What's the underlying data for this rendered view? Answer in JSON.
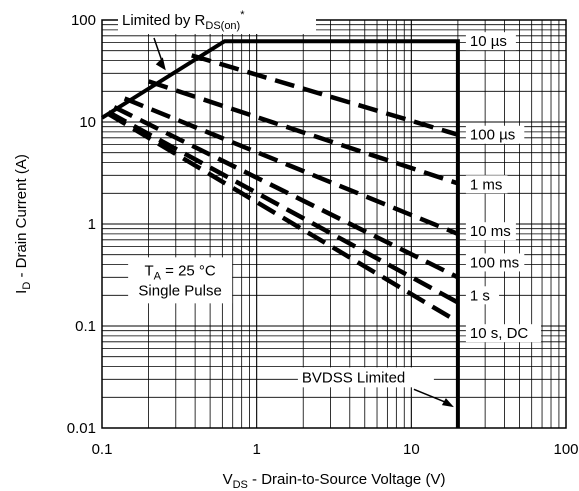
{
  "chart_data": {
    "type": "line",
    "x_scale": "log",
    "y_scale": "log",
    "xlim": [
      0.1,
      100
    ],
    "ylim": [
      0.01,
      100
    ],
    "grid": true,
    "x_ticks": [
      "0.1",
      "1",
      "10",
      "100"
    ],
    "y_ticks": [
      "0.01",
      "0.1",
      "1",
      "10",
      "100"
    ],
    "xlabel": {
      "main": "V",
      "sub": "DS",
      "rest": " - Drain-to-Source Voltage (V)"
    },
    "ylabel": {
      "main": "I",
      "sub": "D",
      "rest": " - Drain Current (A)"
    },
    "annotations": {
      "rds_limit": {
        "main": "Limited by R",
        "sub": "DS(on)",
        "sup": "*"
      },
      "bvdss": "BVDSS Limited",
      "ta_main": "T",
      "ta_sub": "A",
      "ta_rest": " = 25 °C",
      "pulse": "Single Pulse"
    },
    "boundary": {
      "name": "SOA limit",
      "points": [
        [
          0.1,
          11
        ],
        [
          0.62,
          62
        ],
        [
          20,
          62
        ],
        [
          20,
          0.01
        ]
      ]
    },
    "series": [
      {
        "name": "10 µs",
        "points": [
          [
            0.62,
            62
          ],
          [
            20,
            62
          ]
        ]
      },
      {
        "name": "100 µs",
        "points": [
          [
            0.38,
            45
          ],
          [
            20,
            7.5
          ]
        ]
      },
      {
        "name": "1 ms",
        "points": [
          [
            0.2,
            25
          ],
          [
            20,
            2.5
          ]
        ]
      },
      {
        "name": "10 ms",
        "points": [
          [
            0.14,
            17
          ],
          [
            20,
            0.8
          ]
        ]
      },
      {
        "name": "100 ms",
        "points": [
          [
            0.12,
            14
          ],
          [
            20,
            0.3
          ]
        ]
      },
      {
        "name": "1 s",
        "points": [
          [
            0.11,
            12.5
          ],
          [
            20,
            0.17
          ]
        ]
      },
      {
        "name": "10 s, DC",
        "points": [
          [
            0.11,
            12
          ],
          [
            20,
            0.11
          ]
        ]
      }
    ],
    "curve_labels": [
      {
        "text": "10 µs",
        "y": 62
      },
      {
        "text": "100 µs",
        "y": 7.5
      },
      {
        "text": "1 ms",
        "y": 2.45
      },
      {
        "text": "10 ms",
        "y": 0.85
      },
      {
        "text": "100 ms",
        "y": 0.42
      },
      {
        "text": "1 s",
        "y": 0.2
      },
      {
        "text": "10 s, DC",
        "y": 0.085
      }
    ]
  }
}
